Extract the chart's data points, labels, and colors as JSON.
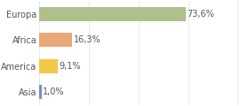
{
  "categories": [
    "Europa",
    "Africa",
    "America",
    "Asia"
  ],
  "values": [
    73.6,
    16.3,
    9.1,
    1.0
  ],
  "labels": [
    "73,6%",
    "16,3%",
    "9,1%",
    "1,0%"
  ],
  "bar_colors": [
    "#afc18a",
    "#e8a878",
    "#f2c84a",
    "#7090c8"
  ],
  "background_color": "#ffffff",
  "xlim": [
    0,
    105
  ],
  "label_fontsize": 7,
  "category_fontsize": 7,
  "grid_color": "#e0e0e0",
  "grid_positions": [
    0,
    25,
    50,
    75,
    100
  ],
  "text_color": "#555555"
}
